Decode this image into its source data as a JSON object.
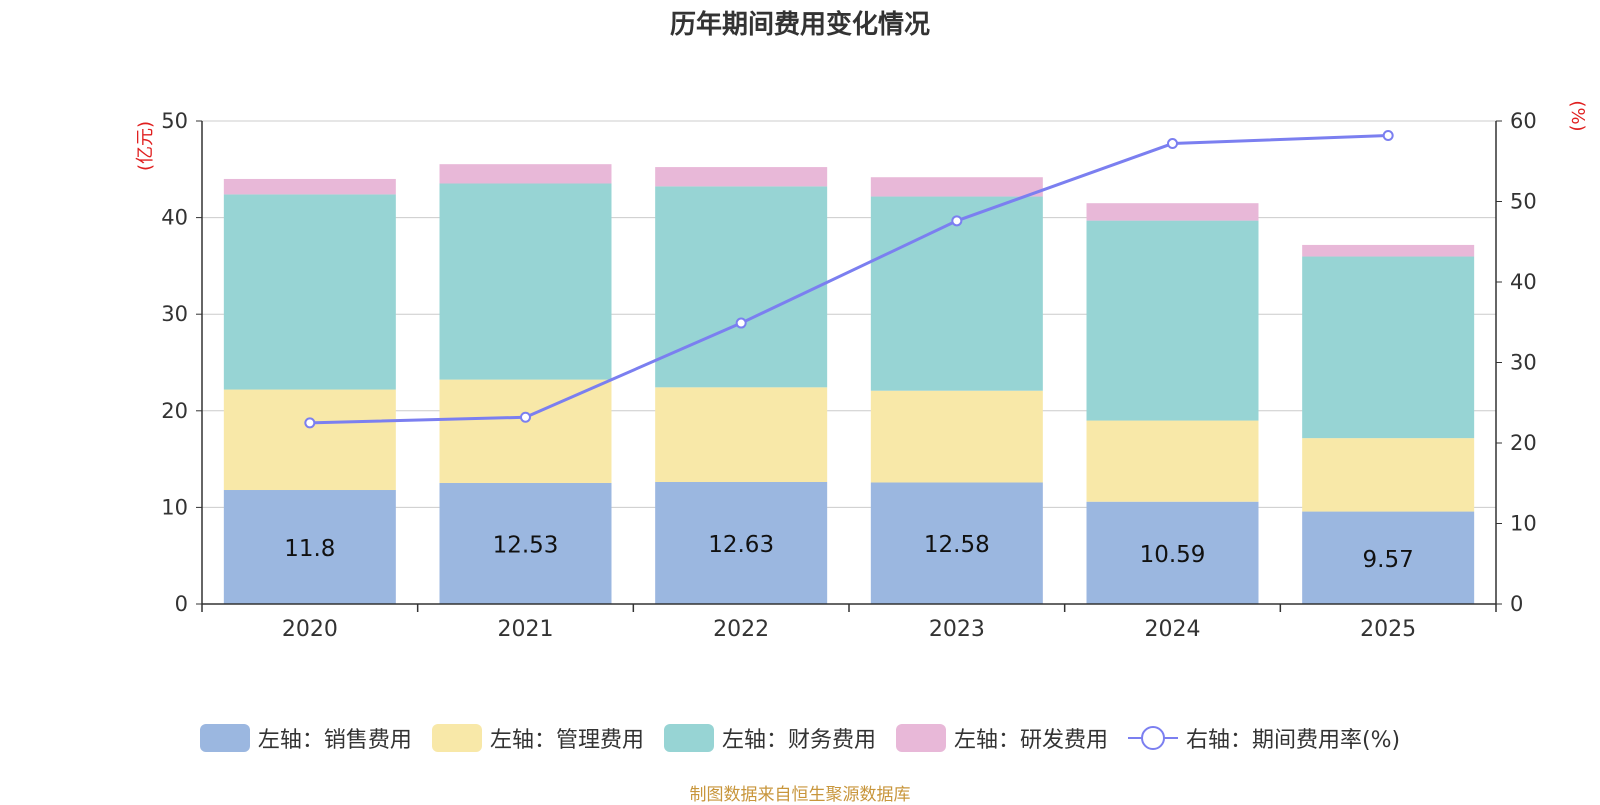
{
  "chart_data": {
    "type": "bar",
    "stacked": true,
    "title": "历年期间费用变化情况",
    "categories": [
      "2020",
      "2021",
      "2022",
      "2023",
      "2024",
      "2025"
    ],
    "left_axis_unit": "(亿元)",
    "right_axis_unit": "(%)",
    "ylim_left": [
      0,
      50
    ],
    "yticks_left": [
      0,
      10,
      20,
      30,
      40,
      50
    ],
    "ylim_right": [
      0,
      60
    ],
    "yticks_right": [
      0,
      10,
      20,
      30,
      40,
      50,
      60
    ],
    "series": [
      {
        "name": "左轴：销售费用",
        "axis": "left",
        "kind": "bar",
        "color": "#9bb7e0",
        "values": [
          11.8,
          12.53,
          12.63,
          12.58,
          10.59,
          9.57
        ],
        "show_labels": true
      },
      {
        "name": "左轴：管理费用",
        "axis": "left",
        "kind": "bar",
        "color": "#f8e8a8",
        "values": [
          10.4,
          10.7,
          9.8,
          9.5,
          8.4,
          7.6
        ]
      },
      {
        "name": "左轴：财务费用",
        "axis": "left",
        "kind": "bar",
        "color": "#97d4d4",
        "values": [
          20.2,
          20.3,
          20.8,
          20.1,
          20.7,
          18.8
        ]
      },
      {
        "name": "左轴：研发费用",
        "axis": "left",
        "kind": "bar",
        "color": "#e8b8d8",
        "values": [
          1.6,
          2.0,
          2.0,
          2.0,
          1.8,
          1.2
        ]
      },
      {
        "name": "右轴：期间费用率(%)",
        "axis": "right",
        "kind": "line",
        "color": "#7b7ff0",
        "values": [
          22.5,
          23.2,
          34.9,
          47.6,
          57.2,
          58.2
        ]
      }
    ]
  },
  "source_text": "制图数据来自恒生聚源数据库"
}
